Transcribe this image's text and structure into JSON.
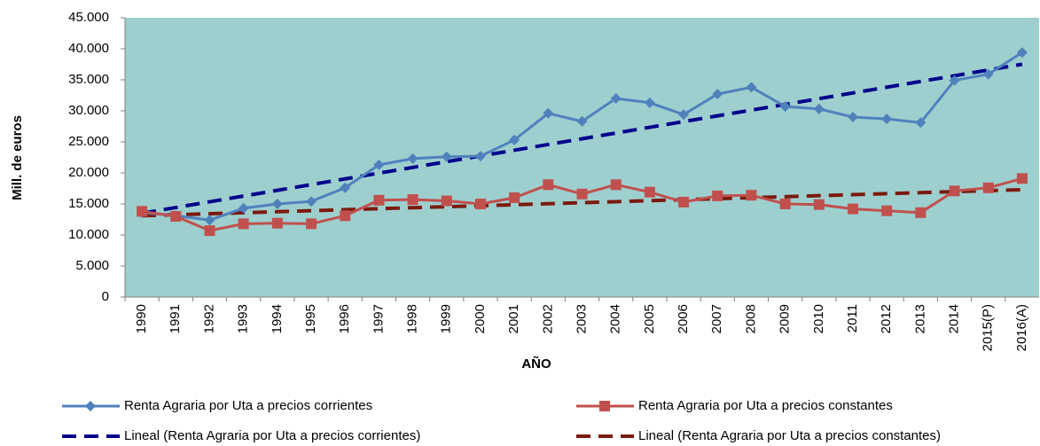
{
  "chart_data": {
    "type": "line",
    "y_label": "Mill. de euros",
    "x_label": "AÑO",
    "categories": [
      "1990",
      "1991",
      "1992",
      "1993",
      "1994",
      "1995",
      "1996",
      "1997",
      "1998",
      "1999",
      "2000",
      "2001",
      "2002",
      "2003",
      "2004",
      "2005",
      "2006",
      "2007",
      "2008",
      "2009",
      "2010",
      "2011",
      "2012",
      "2013",
      "2014",
      "2015(P)",
      "2016(A)"
    ],
    "series": [
      {
        "name": "Renta Agraria por Uta a precios corrientes",
        "color": "#4f81bd",
        "marker": "diamond",
        "dashed": false,
        "values": [
          13600,
          13100,
          12400,
          14300,
          15000,
          15400,
          17600,
          21300,
          22300,
          22600,
          22700,
          25300,
          29600,
          28300,
          32000,
          31300,
          29400,
          32700,
          33800,
          30700,
          30300,
          29000,
          28700,
          28100,
          34900,
          35900,
          39400
        ]
      },
      {
        "name": "Renta Agraria por Uta a precios constantes",
        "color": "#c0504d",
        "marker": "square",
        "dashed": false,
        "values": [
          13800,
          13000,
          10700,
          11800,
          11900,
          11800,
          13100,
          15600,
          15700,
          15500,
          15000,
          16000,
          18100,
          16600,
          18100,
          16900,
          15300,
          16300,
          16400,
          15000,
          14900,
          14200,
          13900,
          13600,
          17100,
          17600,
          19100
        ]
      },
      {
        "name": "Lineal (Renta Agraria por Uta a precios corrientes)",
        "color": "#00008b",
        "marker": null,
        "dashed": true,
        "values": [
          13500,
          14423,
          15346,
          16269,
          17192,
          18115,
          19038,
          19962,
          20885,
          21808,
          22731,
          23654,
          24577,
          25500,
          26423,
          27346,
          28269,
          29192,
          30115,
          31038,
          31962,
          32885,
          33808,
          34731,
          35654,
          36577,
          37500
        ]
      },
      {
        "name": "Lineal (Renta Agraria por Uta a precios constantes)",
        "color": "#7b1a0e",
        "marker": null,
        "dashed": true,
        "values": [
          13100,
          13262,
          13423,
          13585,
          13746,
          13908,
          14069,
          14231,
          14392,
          14554,
          14715,
          14877,
          15038,
          15200,
          15362,
          15523,
          15685,
          15846,
          16008,
          16169,
          16331,
          16492,
          16654,
          16815,
          16977,
          17138,
          17300
        ]
      }
    ],
    "ylim": [
      0,
      45000
    ],
    "yticks": [
      0,
      {
        "value": 5000,
        "label": "5.000"
      },
      {
        "value": 10000,
        "label": "10.000"
      },
      {
        "value": 15000,
        "label": "15.000"
      },
      {
        "value": 20000,
        "label": "20.000"
      },
      {
        "value": 25000,
        "label": "25.000"
      },
      {
        "value": 30000,
        "label": "30.000"
      },
      {
        "value": 35000,
        "label": "35.000"
      },
      {
        "value": 40000,
        "label": "40.000"
      },
      {
        "value": 45000,
        "label": "45.000"
      }
    ],
    "grid": false,
    "plot_background": "#9ecfcf",
    "legend": "bottom"
  }
}
